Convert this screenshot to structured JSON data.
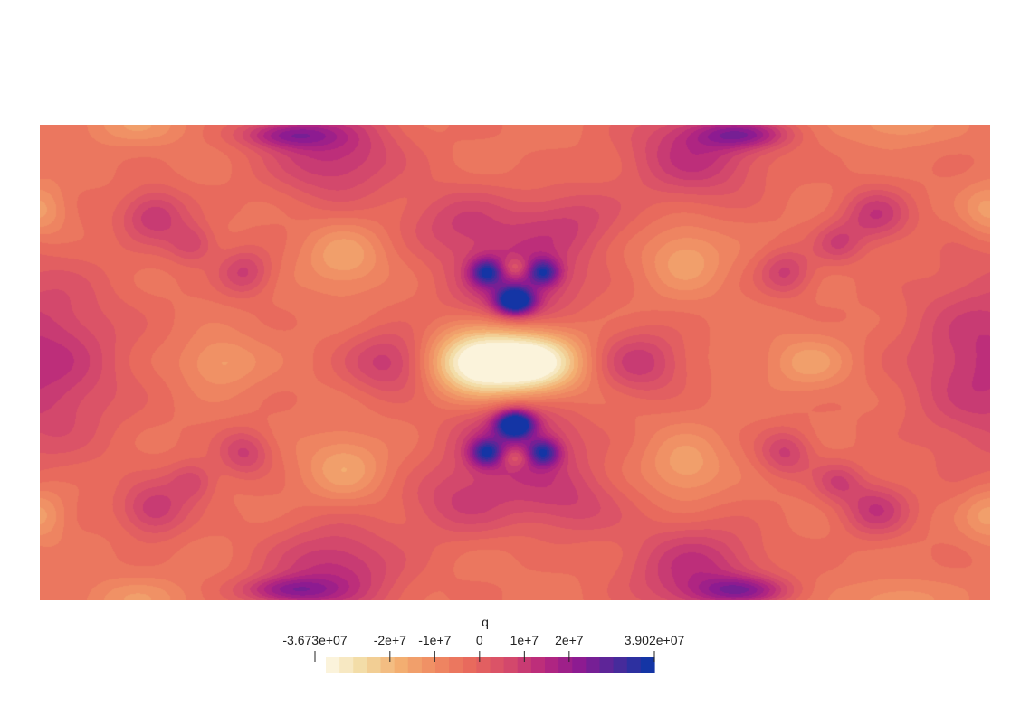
{
  "chart_data": {
    "type": "heatmap",
    "colorbar": {
      "title": "q",
      "min": -36730000,
      "max": 39020000,
      "min_label": "-3.673e+07",
      "max_label": "3.902e+07",
      "ticks": [
        {
          "value": -20000000,
          "label": "-2e+7"
        },
        {
          "value": -10000000,
          "label": "-1e+7"
        },
        {
          "value": 0,
          "label": "0"
        },
        {
          "value": 10000000,
          "label": "1e+7"
        },
        {
          "value": 20000000,
          "label": "2e+7"
        }
      ],
      "n_bands": 24,
      "colormap": [
        "#fdf8e8",
        "#f2dba4",
        "#f3b072",
        "#ef8a62",
        "#e8685d",
        "#d54a6b",
        "#b8287e",
        "#8a1a92",
        "#4a2a9a",
        "#0838a8"
      ]
    },
    "field": {
      "background_value": -6000000,
      "symmetry": "mirror-x and mirror-y about center",
      "features": [
        {
          "x": 0.46,
          "y": 0.5,
          "sx": 0.035,
          "sy": 0.05,
          "value": -36500000
        },
        {
          "x": 0.52,
          "y": 0.5,
          "sx": 0.035,
          "sy": 0.05,
          "value": -35000000
        },
        {
          "x": 0.5,
          "y": 0.5,
          "sx": 0.085,
          "sy": 0.07,
          "value": -12000000
        },
        {
          "x": 0.5,
          "y": 0.37,
          "sx": 0.014,
          "sy": 0.02,
          "value": 39000000
        },
        {
          "x": 0.5,
          "y": 0.63,
          "sx": 0.014,
          "sy": 0.02,
          "value": 39000000
        },
        {
          "x": 0.5,
          "y": 0.33,
          "sx": 0.05,
          "sy": 0.08,
          "value": 14000000
        },
        {
          "x": 0.5,
          "y": 0.67,
          "sx": 0.05,
          "sy": 0.08,
          "value": 14000000
        },
        {
          "x": 0.5,
          "y": 0.3,
          "sx": 0.012,
          "sy": 0.015,
          "value": -18000000
        },
        {
          "x": 0.5,
          "y": 0.7,
          "sx": 0.012,
          "sy": 0.015,
          "value": -18000000
        },
        {
          "x": 0.47,
          "y": 0.31,
          "sx": 0.012,
          "sy": 0.02,
          "value": 22000000
        },
        {
          "x": 0.53,
          "y": 0.31,
          "sx": 0.012,
          "sy": 0.02,
          "value": 22000000
        },
        {
          "x": 0.47,
          "y": 0.69,
          "sx": 0.012,
          "sy": 0.02,
          "value": 22000000
        },
        {
          "x": 0.53,
          "y": 0.69,
          "sx": 0.012,
          "sy": 0.02,
          "value": 22000000
        },
        {
          "x": 0.37,
          "y": 0.5,
          "sx": 0.035,
          "sy": 0.05,
          "value": 11000000
        },
        {
          "x": 0.63,
          "y": 0.5,
          "sx": 0.035,
          "sy": 0.05,
          "value": 11000000
        },
        {
          "x": 0.19,
          "y": 0.5,
          "sx": 0.03,
          "sy": 0.04,
          "value": -16000000
        },
        {
          "x": 0.81,
          "y": 0.5,
          "sx": 0.03,
          "sy": 0.04,
          "value": -16000000
        },
        {
          "x": 0.32,
          "y": 0.28,
          "sx": 0.03,
          "sy": 0.05,
          "value": -17000000
        },
        {
          "x": 0.68,
          "y": 0.28,
          "sx": 0.03,
          "sy": 0.05,
          "value": -17000000
        },
        {
          "x": 0.32,
          "y": 0.72,
          "sx": 0.03,
          "sy": 0.05,
          "value": -17000000
        },
        {
          "x": 0.68,
          "y": 0.72,
          "sx": 0.03,
          "sy": 0.05,
          "value": -17000000
        },
        {
          "x": 0.0,
          "y": 0.5,
          "sx": 0.06,
          "sy": 0.14,
          "value": 12000000
        },
        {
          "x": 1.0,
          "y": 0.5,
          "sx": 0.06,
          "sy": 0.14,
          "value": 12000000
        },
        {
          "x": 0.0,
          "y": 0.18,
          "sx": 0.02,
          "sy": 0.04,
          "value": -17000000
        },
        {
          "x": 1.0,
          "y": 0.18,
          "sx": 0.02,
          "sy": 0.04,
          "value": -17000000
        },
        {
          "x": 0.0,
          "y": 0.82,
          "sx": 0.02,
          "sy": 0.04,
          "value": -17000000
        },
        {
          "x": 1.0,
          "y": 0.82,
          "sx": 0.02,
          "sy": 0.04,
          "value": -17000000
        },
        {
          "x": 0.1,
          "y": 0.0,
          "sx": 0.04,
          "sy": 0.03,
          "value": -14000000
        },
        {
          "x": 0.9,
          "y": 0.0,
          "sx": 0.04,
          "sy": 0.03,
          "value": -14000000
        },
        {
          "x": 0.1,
          "y": 1.0,
          "sx": 0.04,
          "sy": 0.03,
          "value": -14000000
        },
        {
          "x": 0.9,
          "y": 1.0,
          "sx": 0.04,
          "sy": 0.03,
          "value": -14000000
        },
        {
          "x": 0.31,
          "y": 0.06,
          "sx": 0.05,
          "sy": 0.07,
          "value": 12000000
        },
        {
          "x": 0.69,
          "y": 0.06,
          "sx": 0.05,
          "sy": 0.07,
          "value": 12000000
        },
        {
          "x": 0.31,
          "y": 0.94,
          "sx": 0.05,
          "sy": 0.07,
          "value": 12000000
        },
        {
          "x": 0.69,
          "y": 0.94,
          "sx": 0.05,
          "sy": 0.07,
          "value": 12000000
        },
        {
          "x": 0.26,
          "y": 0.02,
          "sx": 0.035,
          "sy": 0.02,
          "value": 14000000
        },
        {
          "x": 0.74,
          "y": 0.02,
          "sx": 0.035,
          "sy": 0.02,
          "value": 14000000
        },
        {
          "x": 0.26,
          "y": 0.98,
          "sx": 0.035,
          "sy": 0.02,
          "value": 14000000
        },
        {
          "x": 0.74,
          "y": 0.98,
          "sx": 0.035,
          "sy": 0.02,
          "value": 14000000
        },
        {
          "x": 0.12,
          "y": 0.19,
          "sx": 0.025,
          "sy": 0.04,
          "value": 10000000
        },
        {
          "x": 0.88,
          "y": 0.19,
          "sx": 0.025,
          "sy": 0.04,
          "value": 10000000
        },
        {
          "x": 0.12,
          "y": 0.81,
          "sx": 0.025,
          "sy": 0.04,
          "value": 10000000
        },
        {
          "x": 0.88,
          "y": 0.81,
          "sx": 0.025,
          "sy": 0.04,
          "value": 10000000
        },
        {
          "x": 0.215,
          "y": 0.31,
          "sx": 0.02,
          "sy": 0.035,
          "value": 8000000
        },
        {
          "x": 0.785,
          "y": 0.31,
          "sx": 0.02,
          "sy": 0.035,
          "value": 8000000
        },
        {
          "x": 0.215,
          "y": 0.69,
          "sx": 0.02,
          "sy": 0.035,
          "value": 8000000
        },
        {
          "x": 0.785,
          "y": 0.69,
          "sx": 0.02,
          "sy": 0.035,
          "value": 8000000
        },
        {
          "x": 0.16,
          "y": 0.25,
          "sx": 0.018,
          "sy": 0.03,
          "value": 6000000
        },
        {
          "x": 0.84,
          "y": 0.25,
          "sx": 0.018,
          "sy": 0.03,
          "value": 6000000
        },
        {
          "x": 0.16,
          "y": 0.75,
          "sx": 0.018,
          "sy": 0.03,
          "value": 6000000
        },
        {
          "x": 0.84,
          "y": 0.75,
          "sx": 0.018,
          "sy": 0.03,
          "value": 6000000
        },
        {
          "x": 0.44,
          "y": 0.2,
          "sx": 0.04,
          "sy": 0.05,
          "value": 5000000
        },
        {
          "x": 0.56,
          "y": 0.2,
          "sx": 0.04,
          "sy": 0.05,
          "value": 5000000
        },
        {
          "x": 0.44,
          "y": 0.8,
          "sx": 0.04,
          "sy": 0.05,
          "value": 5000000
        },
        {
          "x": 0.56,
          "y": 0.8,
          "sx": 0.04,
          "sy": 0.05,
          "value": 5000000
        }
      ]
    }
  }
}
